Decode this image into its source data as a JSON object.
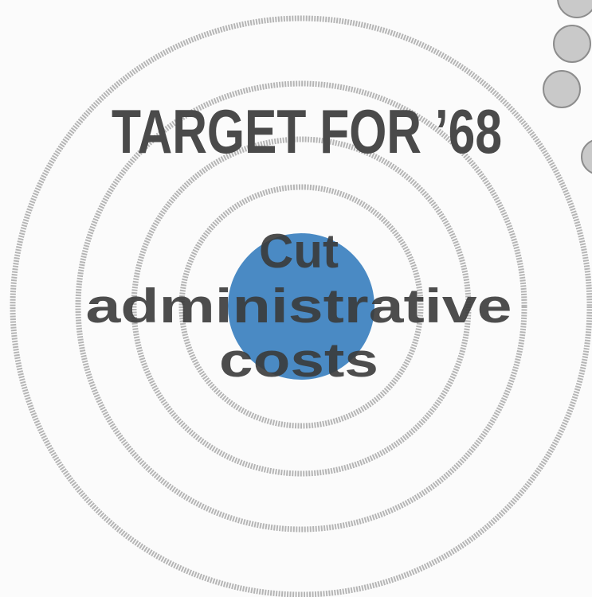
{
  "title": "TARGET FOR ’68",
  "message": {
    "lines": [
      "Cut",
      "administrative",
      "costs"
    ]
  }
}
